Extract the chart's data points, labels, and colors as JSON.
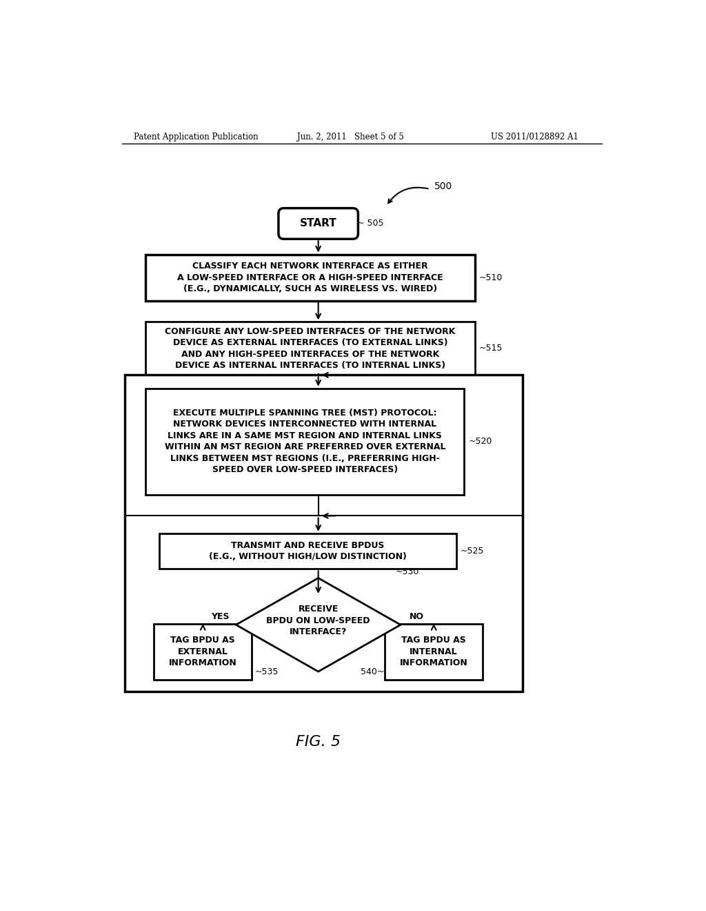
{
  "bg_color": "#ffffff",
  "header_left": "Patent Application Publication",
  "header_mid": "Jun. 2, 2011   Sheet 5 of 5",
  "header_right": "US 2011/0128892 A1",
  "fig_label": "FIG. 5",
  "diagram_label": "500",
  "start_label": "START",
  "start_ref": "505",
  "box510_lines": [
    "CLASSIFY EACH NETWORK INTERFACE AS EITHER",
    "A LOW-SPEED INTERFACE OR A HIGH-SPEED INTERFACE",
    "(E.G., DYNAMICALLY, SUCH AS WIRELESS VS. WIRED)"
  ],
  "box510_ref": "510",
  "box515_lines": [
    "CONFIGURE ANY LOW-SPEED INTERFACES OF THE NETWORK",
    "DEVICE AS EXTERNAL INTERFACES (TO EXTERNAL LINKS)",
    "AND ANY HIGH-SPEED INTERFACES OF THE NETWORK",
    "DEVICE AS INTERNAL INTERFACES (TO INTERNAL LINKS)"
  ],
  "box515_ref": "515",
  "box520_lines": [
    "EXECUTE MULTIPLE SPANNING TREE (MST) PROTOCOL:",
    "NETWORK DEVICES INTERCONNECTED WITH INTERNAL",
    "LINKS ARE IN A SAME MST REGION AND INTERNAL LINKS",
    "WITHIN AN MST REGION ARE PREFERRED OVER EXTERNAL",
    "LINKS BETWEEN MST REGIONS (I.E., PREFERRING HIGH-",
    "SPEED OVER LOW-SPEED INTERFACES)"
  ],
  "box520_ref": "520",
  "box525_lines": [
    "TRANSMIT AND RECEIVE BPDUS",
    "(E.G., WITHOUT HIGH/LOW DISTINCTION)"
  ],
  "box525_ref": "525",
  "diamond530_lines": [
    "RECEIVE",
    "BPDU ON LOW-SPEED",
    "INTERFACE?"
  ],
  "diamond530_ref": "530",
  "box535_lines": [
    "TAG BPDU AS",
    "EXTERNAL",
    "INFORMATION"
  ],
  "box535_ref": "535",
  "box540_lines": [
    "TAG BPDU AS",
    "INTERNAL",
    "INFORMATION"
  ],
  "box540_ref": "540",
  "yes_label": "YES",
  "no_label": "NO"
}
